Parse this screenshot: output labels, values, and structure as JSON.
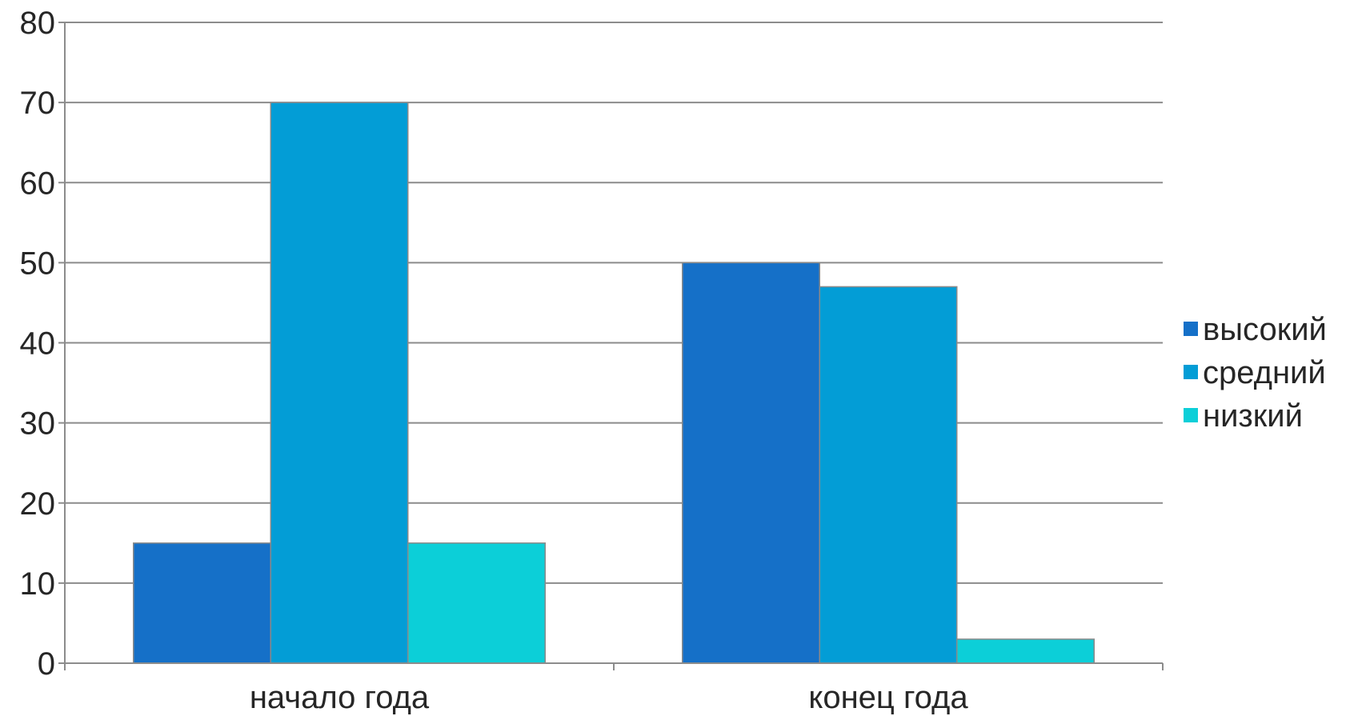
{
  "chart_data": {
    "type": "bar",
    "categories": [
      "начало года",
      "конец года"
    ],
    "series": [
      {
        "name": "высокий",
        "values": [
          15,
          50
        ],
        "color": "#1570c8"
      },
      {
        "name": "средний",
        "values": [
          70,
          47
        ],
        "color": "#039dd6"
      },
      {
        "name": "низкий",
        "values": [
          15,
          3
        ],
        "color": "#0ccfd8"
      }
    ],
    "title": "",
    "xlabel": "",
    "ylabel": "",
    "ylim": [
      0,
      80
    ],
    "yticks": [
      0,
      10,
      20,
      30,
      40,
      50,
      60,
      70,
      80
    ],
    "grid": true,
    "legend": "right"
  }
}
